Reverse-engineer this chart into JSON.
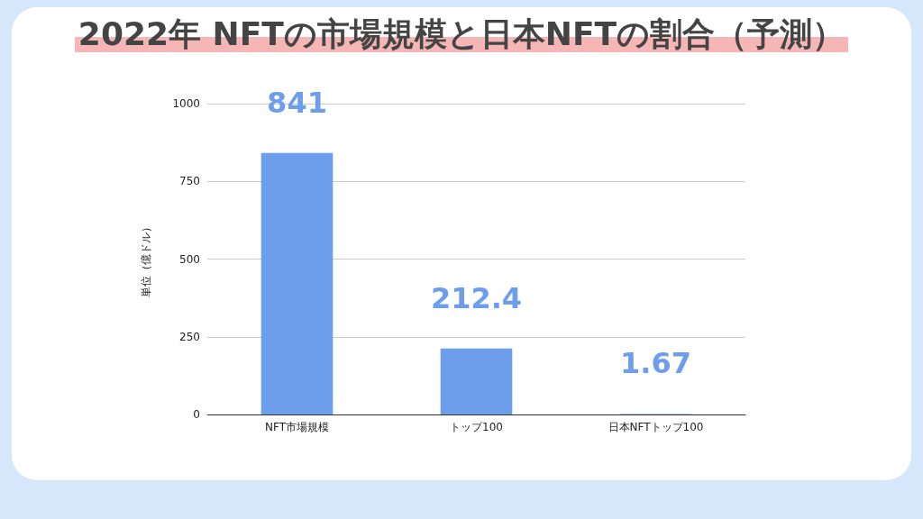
{
  "chart_data": {
    "type": "bar",
    "title": "2022年 NFTの市場規模と日本NFTの割合（予測）",
    "ylabel": "単位（億ドル）",
    "categories": [
      "NFT市場規模",
      "トップ100",
      "日本NFTトップ100"
    ],
    "values": [
      841,
      212.4,
      1.67
    ],
    "color": "#6d9eeb",
    "ylim": [
      0,
      1000
    ],
    "yticks": [
      0,
      250,
      500,
      750,
      1000
    ],
    "grid": "y",
    "data_labels": true
  }
}
